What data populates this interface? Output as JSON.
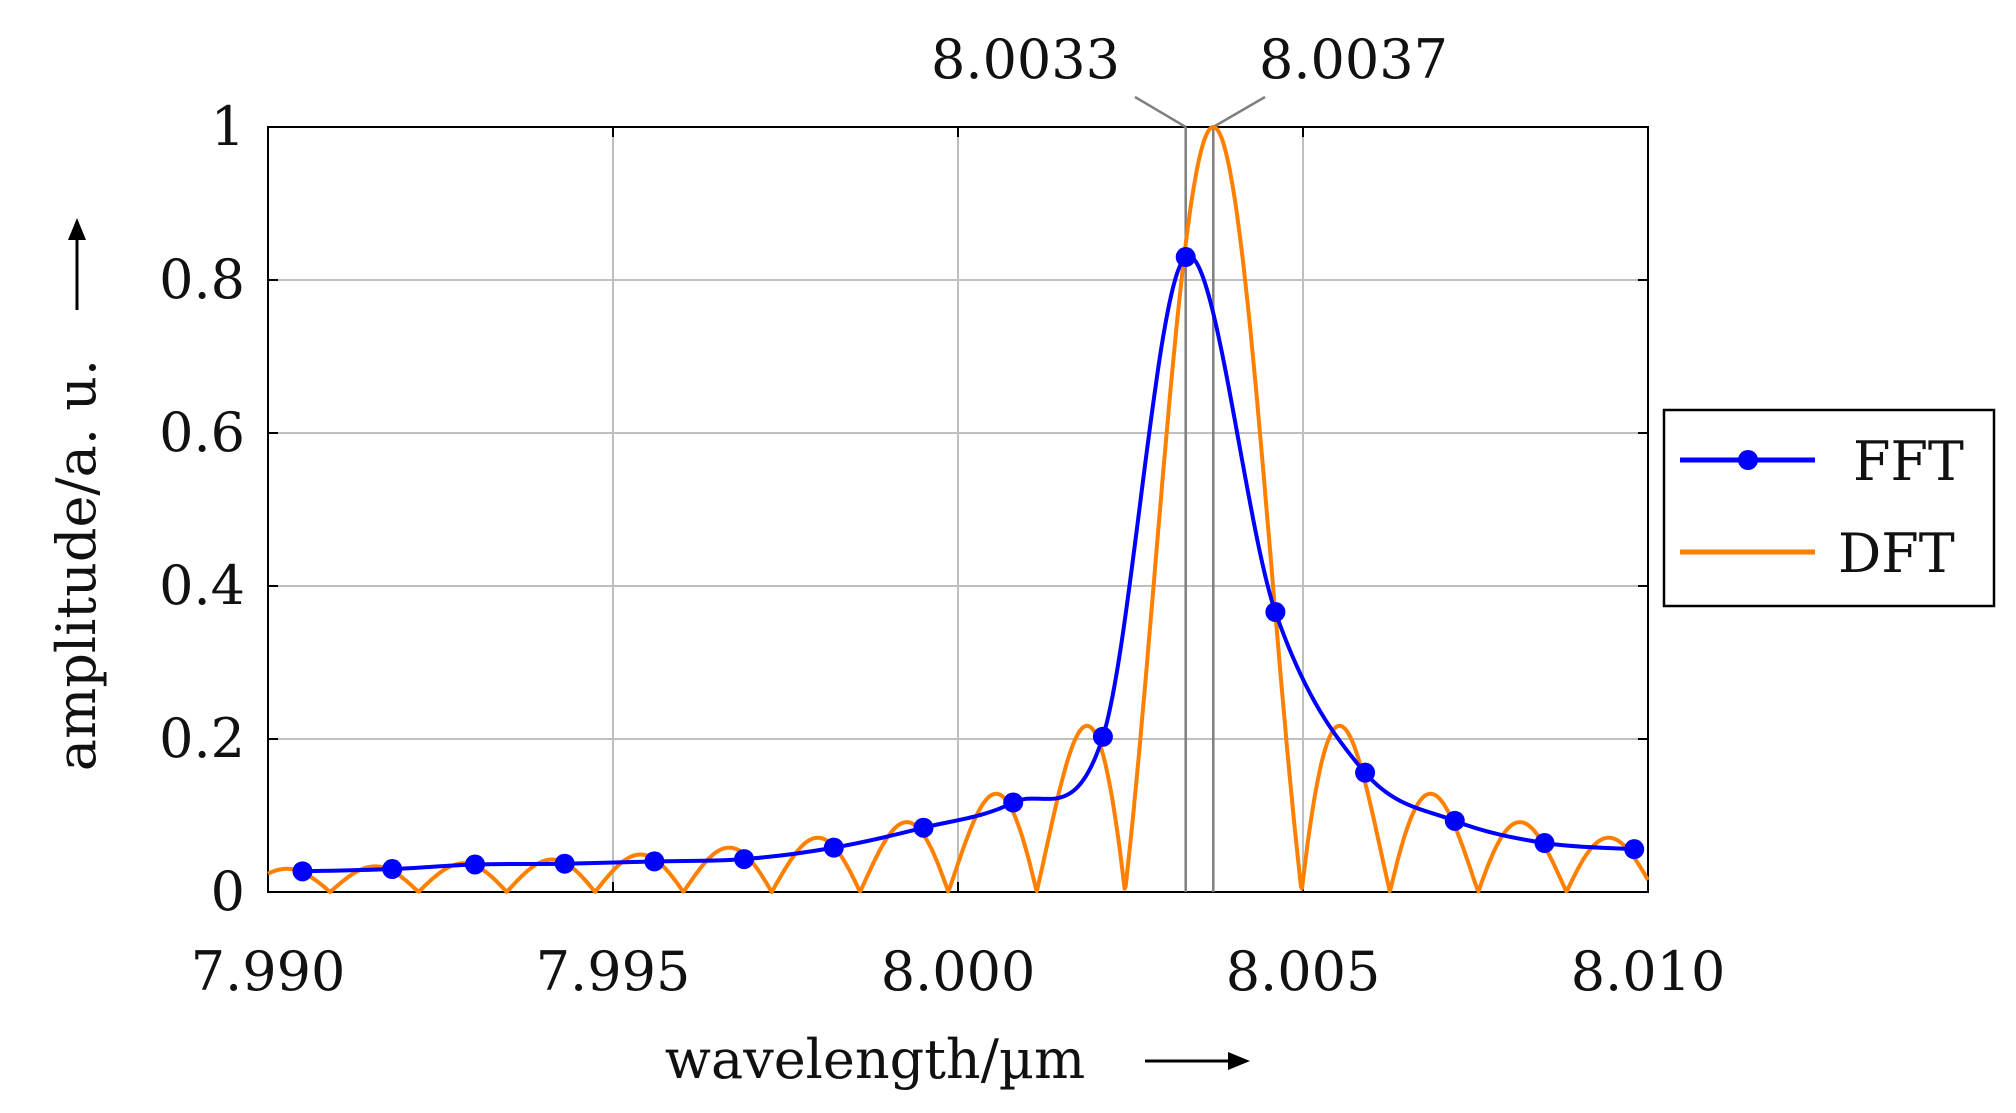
{
  "chart_data": {
    "type": "line",
    "title": "",
    "xlabel": "wavelength/µm",
    "ylabel": "amplitude/a. u.",
    "xlim": [
      7.99,
      8.01
    ],
    "ylim": [
      0,
      1
    ],
    "x_ticks": [
      7.99,
      7.995,
      8.0,
      8.005,
      8.01
    ],
    "x_tick_labels": [
      "7.990",
      "7.995",
      "8.000",
      "8.005",
      "8.010"
    ],
    "y_ticks": [
      0,
      0.2,
      0.4,
      0.6,
      0.8,
      1
    ],
    "y_tick_labels": [
      "0",
      "0.2",
      "0.4",
      "0.6",
      "0.8",
      "1"
    ],
    "grid": true,
    "legend": {
      "placement": "right",
      "entries": [
        "FFT",
        "DFT"
      ]
    },
    "colors": {
      "FFT": "#0000ff",
      "DFT": "#ff8000",
      "grid": "#bfbfbf",
      "axis": "#000000",
      "marker_line": "#7f7f7f"
    },
    "annotations": [
      {
        "text": "8.0033",
        "x": 8.0033
      },
      {
        "text": "8.0037",
        "x": 8.0037
      }
    ],
    "series": [
      {
        "name": "FFT",
        "style": "line-with-markers",
        "points": [
          [
            7.9905,
            0.027
          ],
          [
            7.9918,
            0.03
          ],
          [
            7.993,
            0.036
          ],
          [
            7.9943,
            0.037
          ],
          [
            7.9956,
            0.04
          ],
          [
            7.9969,
            0.043
          ],
          [
            7.9982,
            0.058
          ],
          [
            7.9995,
            0.084
          ],
          [
            8.0008,
            0.117
          ],
          [
            8.0021,
            0.203
          ],
          [
            8.0033,
            0.83
          ],
          [
            8.0046,
            0.366
          ],
          [
            8.0059,
            0.156
          ],
          [
            8.0072,
            0.093
          ],
          [
            8.0085,
            0.064
          ],
          [
            8.0098,
            0.056
          ]
        ]
      },
      {
        "name": "DFT",
        "style": "line",
        "model": "sinc-squared",
        "center": 8.0037,
        "null_spacing": 0.00128,
        "peak": 1.0
      }
    ]
  }
}
